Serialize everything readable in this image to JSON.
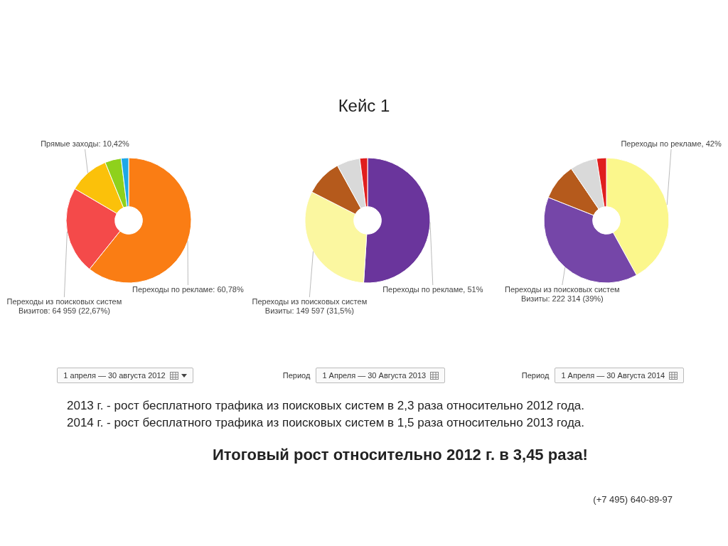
{
  "chart_data": [
    {
      "type": "other",
      "title": "Кейс 1"
    },
    {
      "type": "donut",
      "categories": [
        null,
        null,
        null,
        null,
        null
      ],
      "values": [
        60.78,
        22.67,
        10.42,
        4.2,
        1.93
      ],
      "colors": [
        "#fa7d14",
        "#f44a4a",
        "#fbc10a",
        "#8fd11c",
        "#1ea8e8"
      ],
      "value_labels": [
        "Переходы по рекламе: 60,78%",
        "Переходы из поисковых систем\nВизитов: 64 959 (22,67%)",
        "Прямые заходы: 10,42%",
        null,
        null
      ],
      "annotations": [
        "1 апреля — 30 августа 2012"
      ]
    },
    {
      "type": "donut",
      "categories": [
        null,
        null,
        null,
        null,
        null
      ],
      "values": [
        51,
        31.5,
        9.5,
        6,
        2
      ],
      "colors": [
        "#6a359c",
        "#fbf7a0",
        "#b55a1c",
        "#d9d9d9",
        "#e01e1e"
      ],
      "value_labels": [
        "Переходы по рекламе, 51%",
        "Переходы из поисковых систем\nВизиты: 149 597 (31,5%)",
        null,
        null,
        null
      ],
      "annotations": [
        "Период",
        "1 Апреля — 30 Августа 2013"
      ]
    },
    {
      "type": "donut",
      "categories": [
        null,
        null,
        null,
        null,
        null
      ],
      "values": [
        42,
        39,
        9.5,
        7,
        2.5
      ],
      "colors": [
        "#fbf78c",
        "#7546a8",
        "#b55a1c",
        "#d9d9d9",
        "#e01e1e"
      ],
      "value_labels": [
        "Переходы по рекламе, 42%",
        "Переходы из поисковых систем\nВизиты: 222 314 (39%)",
        null,
        null,
        null
      ],
      "annotations": [
        "Период",
        "1 Апреля — 30 Августа 2014"
      ]
    },
    {
      "type": "other",
      "annotations": [
        "2013 г. - рост бесплатного трафика из поисковых систем в 2,3 раза относительно 2012 года.",
        "2014 г. - рост бесплатного трафика из поисковых систем в 1,5 раза относительно 2013 года.",
        "Итоговый рост относительно 2012 г. в 3,45 раза!",
        "(+7 495) 640-89-97"
      ]
    }
  ]
}
